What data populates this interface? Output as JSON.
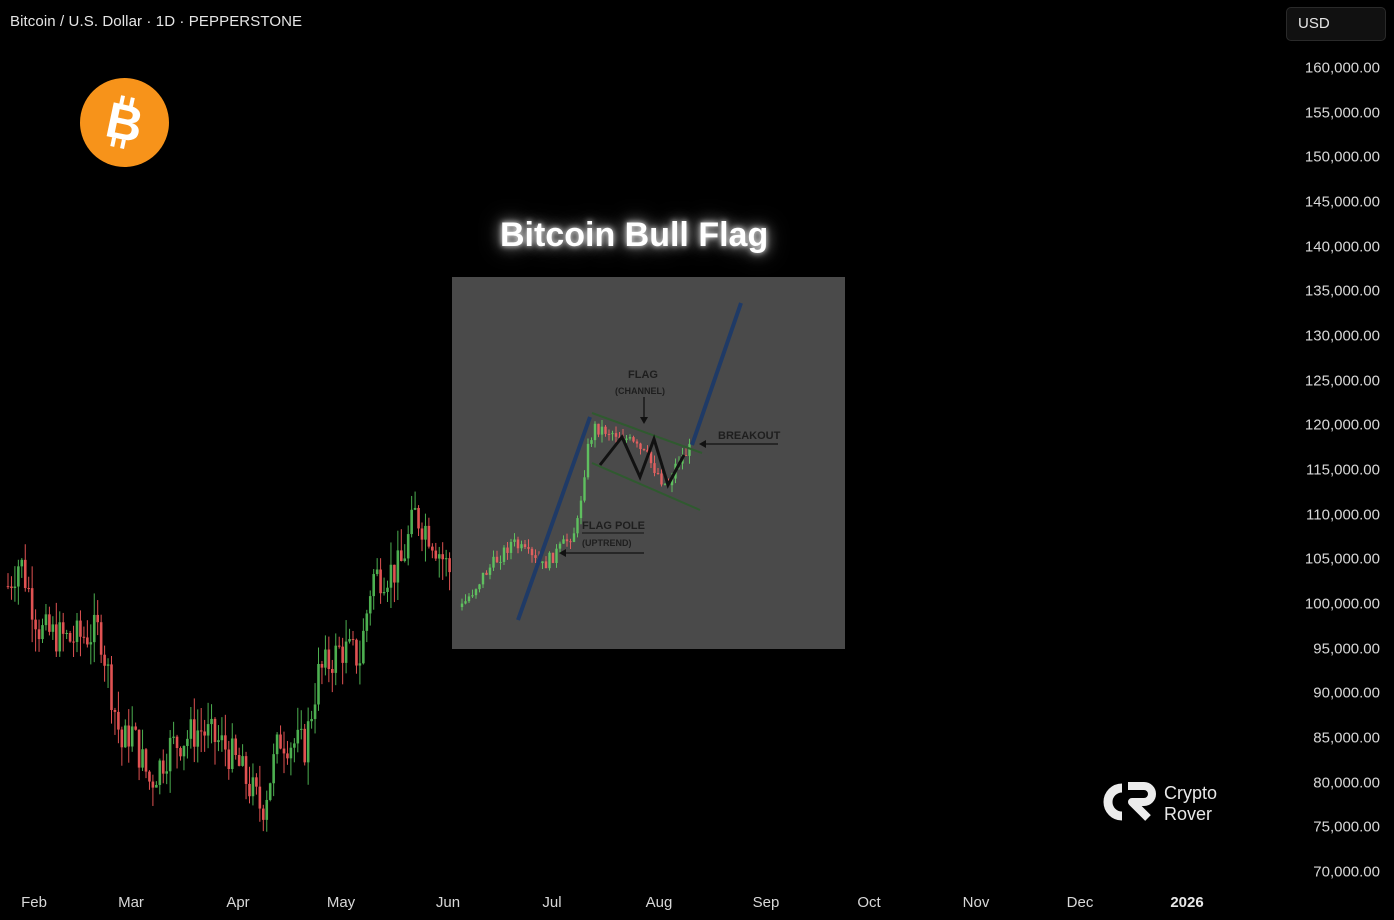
{
  "header": {
    "symbol_title": "Bitcoin / U.S. Dollar · 1D · PEPPERSTONE"
  },
  "currency_button": {
    "label": "USD"
  },
  "brand": {
    "logo_icon": "bitcoin-logo-icon",
    "logo_color": "#f7931a",
    "watermark_line1": "Crypto",
    "watermark_line2": "Rover"
  },
  "chart_data": {
    "type": "candlestick",
    "title": "Bitcoin Bull Flag",
    "ylim": [
      70000,
      160000
    ],
    "y_ticks": [
      "160,000.00",
      "155,000.00",
      "150,000.00",
      "145,000.00",
      "140,000.00",
      "135,000.00",
      "130,000.00",
      "125,000.00",
      "120,000.00",
      "115,000.00",
      "110,000.00",
      "105,000.00",
      "100,000.00",
      "95,000.00",
      "90,000.00",
      "85,000.00",
      "80,000.00",
      "75,000.00",
      "70,000.00"
    ],
    "x_ticks": [
      "Feb",
      "Mar",
      "Apr",
      "May",
      "Jun",
      "Jul",
      "Aug",
      "Sep",
      "Oct",
      "Nov",
      "Dec",
      "2026"
    ],
    "up_color": "#4caf50",
    "down_color": "#e05252",
    "grid": false,
    "approx_closes": [
      {
        "month": "Feb",
        "close": 102000
      },
      {
        "month": "Mar",
        "close": 86000
      },
      {
        "month": "Apr",
        "close": 83000
      },
      {
        "month": "May",
        "close": 95000
      },
      {
        "month": "Jun",
        "close": 104000
      },
      {
        "month": "Jul",
        "close": 107000
      }
    ],
    "range_low": 74500,
    "range_high": 112000
  },
  "inset": {
    "flag_label": "FLAG",
    "channel_label": "(CHANNEL)",
    "breakout_label": "BREAKOUT",
    "pole_label": "FLAG POLE",
    "uptrend_label": "(UPTREND)"
  }
}
